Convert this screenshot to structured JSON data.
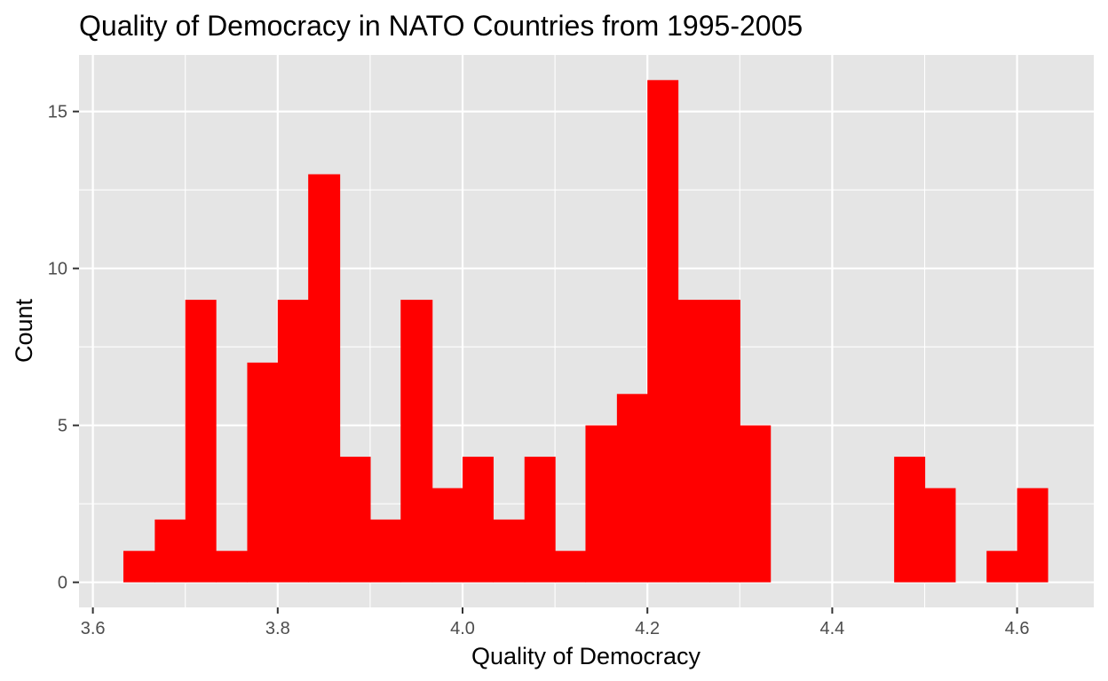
{
  "chart_data": {
    "type": "bar",
    "title": "Quality of Democracy in NATO Countries from 1995-2005",
    "xlabel": "Quality of Democracy",
    "ylabel": "Count",
    "bin_width": 0.0333,
    "bins": [
      {
        "start": 3.633,
        "end": 3.667,
        "count": 1
      },
      {
        "start": 3.667,
        "end": 3.7,
        "count": 2
      },
      {
        "start": 3.7,
        "end": 3.733,
        "count": 9
      },
      {
        "start": 3.733,
        "end": 3.767,
        "count": 1
      },
      {
        "start": 3.767,
        "end": 3.8,
        "count": 7
      },
      {
        "start": 3.8,
        "end": 3.833,
        "count": 9
      },
      {
        "start": 3.833,
        "end": 3.867,
        "count": 13
      },
      {
        "start": 3.867,
        "end": 3.9,
        "count": 4
      },
      {
        "start": 3.9,
        "end": 3.933,
        "count": 2
      },
      {
        "start": 3.933,
        "end": 3.967,
        "count": 9
      },
      {
        "start": 3.967,
        "end": 4.0,
        "count": 3
      },
      {
        "start": 4.0,
        "end": 4.033,
        "count": 4
      },
      {
        "start": 4.033,
        "end": 4.067,
        "count": 2
      },
      {
        "start": 4.067,
        "end": 4.1,
        "count": 4
      },
      {
        "start": 4.1,
        "end": 4.133,
        "count": 1
      },
      {
        "start": 4.133,
        "end": 4.167,
        "count": 5
      },
      {
        "start": 4.167,
        "end": 4.2,
        "count": 6
      },
      {
        "start": 4.2,
        "end": 4.233,
        "count": 16
      },
      {
        "start": 4.233,
        "end": 4.267,
        "count": 9
      },
      {
        "start": 4.267,
        "end": 4.3,
        "count": 9
      },
      {
        "start": 4.3,
        "end": 4.333,
        "count": 5
      },
      {
        "start": 4.333,
        "end": 4.367,
        "count": 0
      },
      {
        "start": 4.367,
        "end": 4.4,
        "count": 0
      },
      {
        "start": 4.4,
        "end": 4.433,
        "count": 0
      },
      {
        "start": 4.433,
        "end": 4.467,
        "count": 0
      },
      {
        "start": 4.467,
        "end": 4.5,
        "count": 4
      },
      {
        "start": 4.5,
        "end": 4.533,
        "count": 3
      },
      {
        "start": 4.533,
        "end": 4.567,
        "count": 0
      },
      {
        "start": 4.567,
        "end": 4.6,
        "count": 1
      },
      {
        "start": 4.6,
        "end": 4.633,
        "count": 3
      }
    ],
    "xlim": [
      3.585,
      4.683
    ],
    "ylim": [
      -0.8,
      16.8
    ],
    "x_ticks": [
      3.6,
      3.8,
      4.0,
      4.2,
      4.4,
      4.6
    ],
    "x_tick_labels": [
      "3.6",
      "3.8",
      "4.0",
      "4.2",
      "4.4",
      "4.6"
    ],
    "y_ticks": [
      0,
      5,
      10,
      15
    ],
    "y_tick_labels": [
      "0",
      "5",
      "10",
      "15"
    ],
    "grid": true,
    "colors": {
      "bar_fill": "#ff0000",
      "panel_background": "#e5e5e5",
      "gridline": "#ffffff",
      "tick_text": "#4d4d4d",
      "title_text": "#000000"
    }
  }
}
